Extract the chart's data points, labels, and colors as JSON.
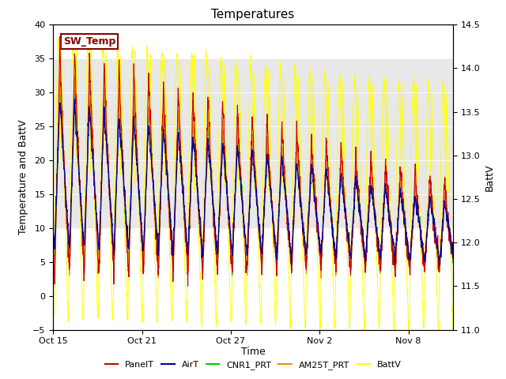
{
  "title": "Temperatures",
  "xlabel": "Time",
  "ylabel_left": "Temperature and BattV",
  "ylabel_right": "BattV",
  "ylim_left": [
    -5,
    40
  ],
  "ylim_right": [
    11.0,
    14.5
  ],
  "yticks_left": [
    -5,
    0,
    5,
    10,
    15,
    20,
    25,
    30,
    35,
    40
  ],
  "yticks_right": [
    11.0,
    11.5,
    12.0,
    12.5,
    13.0,
    13.5,
    14.0,
    14.5
  ],
  "xtick_labels": [
    "Oct 15",
    "Oct 21",
    "Oct 27",
    "Nov 2",
    "Nov 8"
  ],
  "xtick_positions": [
    0,
    6,
    12,
    18,
    24
  ],
  "sw_temp_label": "SW_Temp",
  "shaded_ymin": 10,
  "shaded_ymax": 35,
  "colors": {
    "PanelT": "#cc0000",
    "AirT": "#000099",
    "CNR1_PRT": "#00cc00",
    "AM25T_PRT": "#ff8800",
    "BattV": "#ffff00"
  },
  "n_days": 27,
  "pts_per_day": 96,
  "seed": 12345
}
